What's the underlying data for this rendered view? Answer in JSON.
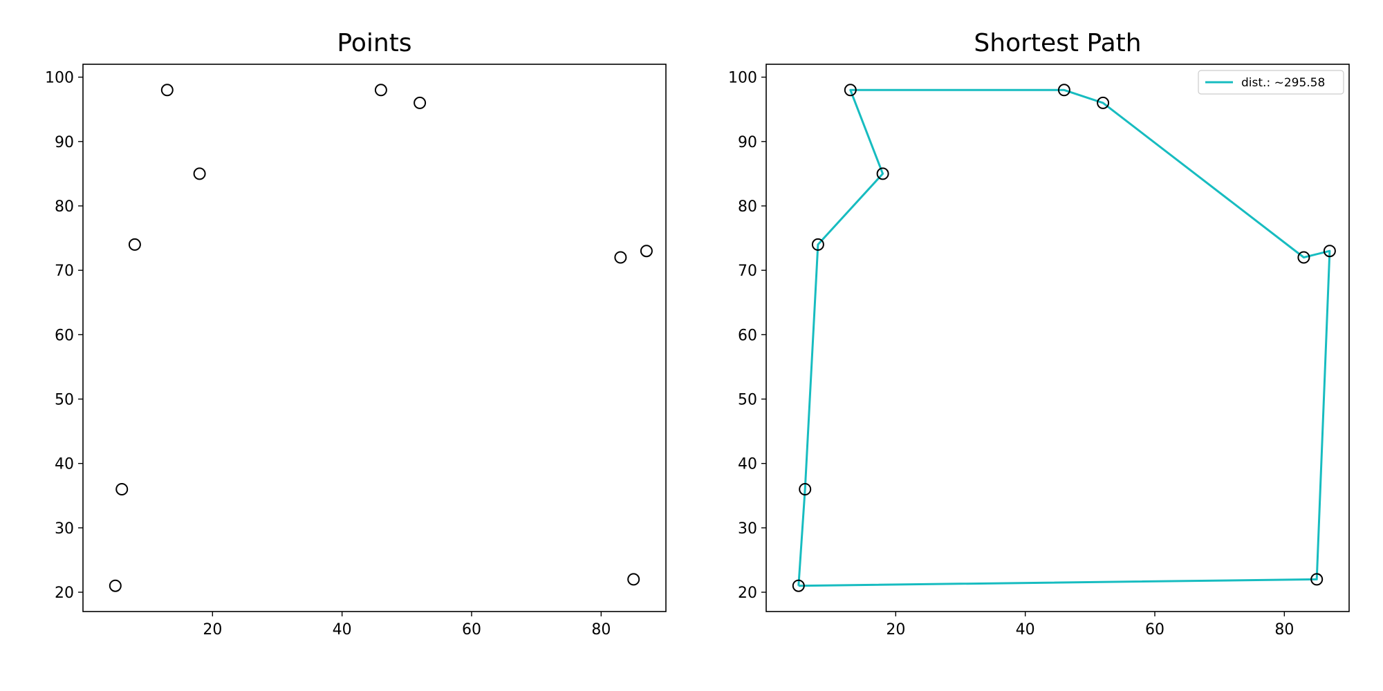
{
  "chart_data": [
    {
      "type": "scatter",
      "title": "Points",
      "xlabel": "",
      "ylabel": "",
      "xlim": [
        0,
        90
      ],
      "ylim": [
        17,
        102
      ],
      "xticks": [
        20,
        40,
        60,
        80
      ],
      "yticks": [
        20,
        30,
        40,
        50,
        60,
        70,
        80,
        90,
        100
      ],
      "grid": false,
      "points": [
        {
          "x": 5,
          "y": 21
        },
        {
          "x": 6,
          "y": 36
        },
        {
          "x": 8,
          "y": 74
        },
        {
          "x": 13,
          "y": 98
        },
        {
          "x": 18,
          "y": 85
        },
        {
          "x": 46,
          "y": 98
        },
        {
          "x": 52,
          "y": 96
        },
        {
          "x": 83,
          "y": 72
        },
        {
          "x": 87,
          "y": 73
        },
        {
          "x": 85,
          "y": 22
        }
      ]
    },
    {
      "type": "line",
      "title": "Shortest Path",
      "xlabel": "",
      "ylabel": "",
      "xlim": [
        0,
        90
      ],
      "ylim": [
        17,
        102
      ],
      "xticks": [
        20,
        40,
        60,
        80
      ],
      "yticks": [
        20,
        30,
        40,
        50,
        60,
        70,
        80,
        90,
        100
      ],
      "grid": false,
      "legend": {
        "placement": "top-right"
      },
      "points": [
        {
          "x": 5,
          "y": 21
        },
        {
          "x": 6,
          "y": 36
        },
        {
          "x": 8,
          "y": 74
        },
        {
          "x": 13,
          "y": 98
        },
        {
          "x": 18,
          "y": 85
        },
        {
          "x": 46,
          "y": 98
        },
        {
          "x": 52,
          "y": 96
        },
        {
          "x": 83,
          "y": 72
        },
        {
          "x": 87,
          "y": 73
        },
        {
          "x": 85,
          "y": 22
        }
      ],
      "series": [
        {
          "name": "dist.: ~295.58",
          "color": "#17bcc0",
          "path": [
            {
              "x": 5,
              "y": 21
            },
            {
              "x": 6,
              "y": 36
            },
            {
              "x": 8,
              "y": 74
            },
            {
              "x": 18,
              "y": 85
            },
            {
              "x": 13,
              "y": 98
            },
            {
              "x": 46,
              "y": 98
            },
            {
              "x": 52,
              "y": 96
            },
            {
              "x": 83,
              "y": 72
            },
            {
              "x": 87,
              "y": 73
            },
            {
              "x": 85,
              "y": 22
            },
            {
              "x": 5,
              "y": 21
            }
          ]
        }
      ]
    }
  ]
}
